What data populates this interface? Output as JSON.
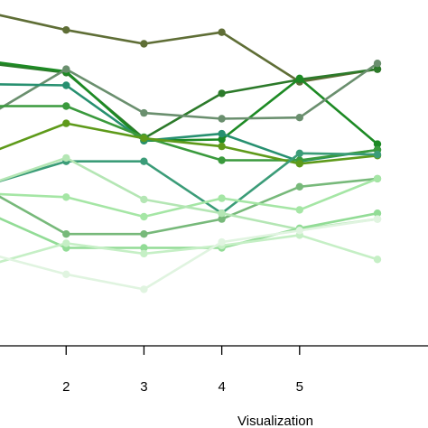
{
  "chart_data": {
    "type": "line",
    "title": "",
    "xlabel": "Visualization",
    "ylabel": "",
    "x_ticks": [
      2,
      3,
      4,
      5
    ],
    "xlim": [
      0.15,
      5.65
    ],
    "ylim": [
      0,
      30
    ],
    "grid": false,
    "legend": "none",
    "series": [
      {
        "color": "#5f6e36",
        "values": [
          28.9,
          27.4,
          26.2,
          27.2,
          22.9,
          24.0
        ]
      },
      {
        "color": "#2c7a2a",
        "values": [
          24.5,
          23.7,
          18.0,
          21.9,
          23.1,
          24.0
        ]
      },
      {
        "color": "#1d8a24",
        "values": [
          24.7,
          23.8,
          17.8,
          17.9,
          23.2,
          17.5
        ]
      },
      {
        "color": "#6a8f6e",
        "values": [
          20.0,
          24.0,
          20.2,
          19.7,
          19.8,
          24.5
        ]
      },
      {
        "color": "#279070",
        "values": [
          22.7,
          22.6,
          17.8,
          18.4,
          16.0,
          17.0
        ]
      },
      {
        "color": "#3a9a3d",
        "values": [
          20.8,
          20.8,
          18.1,
          16.1,
          16.1,
          17.0
        ]
      },
      {
        "color": "#5e9a1a",
        "values": [
          16.7,
          19.3,
          18.0,
          17.3,
          15.8,
          16.5
        ]
      },
      {
        "color": "#3b9c78",
        "values": [
          14.0,
          16.0,
          16.0,
          11.5,
          16.7,
          16.6
        ]
      },
      {
        "color": "#77b97a",
        "values": [
          13.5,
          9.7,
          9.7,
          11.0,
          13.8,
          14.5
        ]
      },
      {
        "color": "#a5e6a5",
        "values": [
          13.2,
          12.9,
          11.2,
          12.8,
          11.8,
          14.5
        ]
      },
      {
        "color": "#b4e6b4",
        "values": [
          14.0,
          16.3,
          12.7,
          11.5,
          10.1,
          11.0
        ]
      },
      {
        "color": "#92dc96",
        "values": [
          11.5,
          8.5,
          8.5,
          8.5,
          10.2,
          11.5
        ]
      },
      {
        "color": "#c5efc5",
        "values": [
          7.0,
          8.9,
          8.0,
          8.7,
          9.6,
          7.5
        ]
      },
      {
        "color": "#e0f4e0",
        "values": [
          8.0,
          6.2,
          4.9,
          9.0,
          10.0,
          11.0
        ]
      }
    ]
  }
}
